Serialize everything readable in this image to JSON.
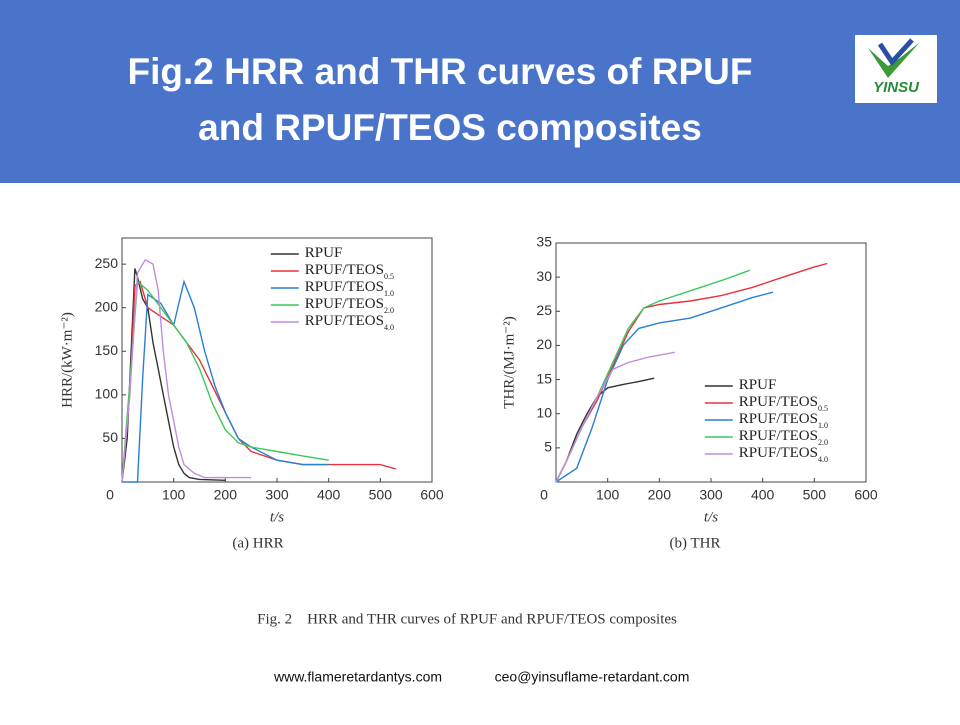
{
  "header": {
    "title_lines": [
      "Fig.2 HRR and THR curves of RPUF",
      "and RPUF/TEOS composites"
    ],
    "logo": "YINSU"
  },
  "chart_data": [
    {
      "type": "line",
      "caption": "(a) HRR",
      "y_label": "HRR/(kW·m⁻²)",
      "x_label": "t/s",
      "xlim": [
        0,
        600
      ],
      "xticks": [
        0,
        100,
        200,
        300,
        400,
        500,
        600
      ],
      "ylim": [
        0,
        280
      ],
      "yticks": [
        50,
        100,
        150,
        200,
        250
      ],
      "legend": "top-right",
      "series": [
        {
          "name": "RPUF",
          "color": "#333333",
          "x": [
            0,
            10,
            20,
            25,
            30,
            40,
            50,
            60,
            70,
            80,
            90,
            100,
            110,
            120,
            130,
            150,
            200
          ],
          "values": [
            0,
            50,
            180,
            245,
            235,
            210,
            200,
            160,
            130,
            100,
            70,
            40,
            20,
            10,
            5,
            3,
            2
          ]
        },
        {
          "name": "RPUF/TEOS",
          "subscript": "0.5",
          "color": "#e8323c",
          "x": [
            0,
            15,
            25,
            35,
            50,
            75,
            100,
            125,
            150,
            175,
            200,
            225,
            250,
            300,
            350,
            400,
            450,
            500,
            530
          ],
          "values": [
            0,
            100,
            225,
            230,
            200,
            190,
            180,
            160,
            140,
            110,
            80,
            50,
            35,
            25,
            20,
            20,
            20,
            20,
            15
          ]
        },
        {
          "name": "RPUF/TEOS",
          "subscript": "1.0",
          "color": "#2a7fd4",
          "x": [
            0,
            30,
            40,
            50,
            75,
            100,
            120,
            140,
            160,
            180,
            200,
            225,
            250,
            300,
            350,
            400
          ],
          "values": [
            0,
            0,
            120,
            215,
            205,
            180,
            230,
            200,
            150,
            110,
            80,
            50,
            40,
            25,
            20,
            20
          ]
        },
        {
          "name": "RPUF/TEOS",
          "subscript": "2.0",
          "color": "#3cc85a",
          "x": [
            0,
            20,
            30,
            50,
            75,
            100,
            125,
            150,
            175,
            200,
            225,
            250,
            300,
            350,
            400
          ],
          "values": [
            0,
            150,
            230,
            220,
            200,
            180,
            160,
            130,
            90,
            60,
            45,
            40,
            35,
            30,
            25
          ]
        },
        {
          "name": "RPUF/TEOS",
          "subscript": "4.0",
          "color": "#c08ce0",
          "x": [
            0,
            15,
            30,
            45,
            60,
            70,
            80,
            90,
            100,
            110,
            120,
            140,
            160,
            180,
            200,
            250
          ],
          "values": [
            0,
            100,
            240,
            255,
            250,
            220,
            150,
            100,
            70,
            40,
            20,
            10,
            5,
            5,
            5,
            5
          ]
        }
      ]
    },
    {
      "type": "line",
      "caption": "(b) THR",
      "y_label": "THR/(MJ·m⁻²)",
      "x_label": "t/s",
      "xlim": [
        0,
        600
      ],
      "xticks": [
        0,
        100,
        200,
        300,
        400,
        500,
        600
      ],
      "ylim": [
        0,
        35
      ],
      "yticks": [
        5,
        10,
        15,
        20,
        25,
        30,
        35
      ],
      "legend": "bottom-right",
      "series": [
        {
          "name": "RPUF",
          "color": "#333333",
          "x": [
            0,
            20,
            40,
            60,
            80,
            100,
            130,
            160,
            190
          ],
          "values": [
            0,
            3,
            7,
            10,
            12.5,
            13.8,
            14.3,
            14.7,
            15.2
          ]
        },
        {
          "name": "RPUF/TEOS",
          "subscript": "0.5",
          "color": "#e8323c",
          "x": [
            0,
            20,
            50,
            80,
            110,
            140,
            170,
            200,
            260,
            320,
            380,
            440,
            500,
            525
          ],
          "values": [
            0,
            3,
            8,
            12,
            17,
            22,
            25.5,
            26,
            26.5,
            27.3,
            28.5,
            30,
            31.5,
            32
          ]
        },
        {
          "name": "RPUF/TEOS",
          "subscript": "1.0",
          "color": "#2a7fd4",
          "x": [
            0,
            40,
            70,
            100,
            130,
            160,
            200,
            260,
            320,
            380,
            420
          ],
          "values": [
            0,
            2,
            8,
            15,
            20,
            22.5,
            23.3,
            24,
            25.5,
            27,
            27.8
          ]
        },
        {
          "name": "RPUF/TEOS",
          "subscript": "2.0",
          "color": "#3cc85a",
          "x": [
            0,
            20,
            50,
            80,
            110,
            140,
            170,
            200,
            260,
            320,
            375
          ],
          "values": [
            0,
            3,
            8,
            12.5,
            17.5,
            22.5,
            25.5,
            26.5,
            28,
            29.5,
            31
          ]
        },
        {
          "name": "RPUF/TEOS",
          "subscript": "4.0",
          "color": "#c08ce0",
          "x": [
            0,
            20,
            50,
            80,
            110,
            140,
            180,
            230
          ],
          "values": [
            0,
            3,
            8,
            12.5,
            16.5,
            17.5,
            18.3,
            19
          ]
        }
      ]
    }
  ],
  "figure_caption": "Fig. 2    HRR and THR curves of RPUF and RPUF/TEOS composites",
  "footer": {
    "website": "www.flameretardantys.com",
    "email": "ceo@yinsuflame-retardant.com"
  }
}
